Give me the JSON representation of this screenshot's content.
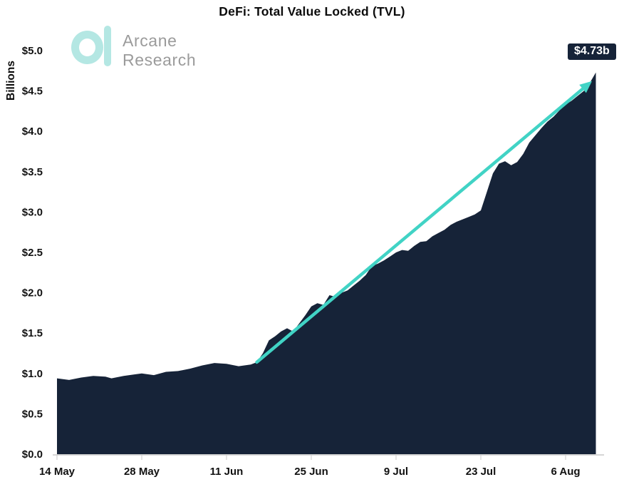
{
  "title": "DeFi: Total Value Locked (TVL)",
  "branding": {
    "name_line1": "Arcane",
    "name_line2": "Research",
    "logo_color": "#b4e7e3",
    "text_color": "#9b9b9b"
  },
  "callout": {
    "label": "$4.73b",
    "bg": "#162338",
    "text_color": "#ffffff"
  },
  "chart_data": {
    "type": "area",
    "title": "DeFi: Total Value Locked (TVL)",
    "xlabel": "",
    "ylabel": "Billions",
    "ylim": [
      0,
      5
    ],
    "y_tick_step": 0.5,
    "y_ticks": [
      "$0.0",
      "$0.5",
      "$1.0",
      "$1.5",
      "$2.0",
      "$2.5",
      "$3.0",
      "$3.5",
      "$4.0",
      "$4.5",
      "$5.0"
    ],
    "x_ticks": [
      {
        "day": 0,
        "label": "14 May"
      },
      {
        "day": 14,
        "label": "28 May"
      },
      {
        "day": 28,
        "label": "11 Jun"
      },
      {
        "day": 42,
        "label": "25 Jun"
      },
      {
        "day": 56,
        "label": "9 Jul"
      },
      {
        "day": 70,
        "label": "23 Jul"
      },
      {
        "day": 84,
        "label": "6 Aug"
      }
    ],
    "x_range_days": [
      0,
      89
    ],
    "grid": false,
    "legend": "none",
    "area_color": "#162338",
    "axis_color": "#c9c9c9",
    "tick_label_color": "#111111",
    "series": [
      {
        "name": "Total Value Locked",
        "unit": "USD billions",
        "points": [
          [
            0,
            "14 May",
            0.94
          ],
          [
            2,
            "16 May",
            0.92
          ],
          [
            4,
            "18 May",
            0.95
          ],
          [
            6,
            "20 May",
            0.97
          ],
          [
            8,
            "22 May",
            0.96
          ],
          [
            9,
            "23 May",
            0.94
          ],
          [
            11,
            "25 May",
            0.97
          ],
          [
            13,
            "27 May",
            0.99
          ],
          [
            14,
            "28 May",
            1.0
          ],
          [
            16,
            "30 May",
            0.98
          ],
          [
            18,
            "1 Jun",
            1.02
          ],
          [
            20,
            "3 Jun",
            1.03
          ],
          [
            22,
            "5 Jun",
            1.06
          ],
          [
            24,
            "7 Jun",
            1.1
          ],
          [
            26,
            "9 Jun",
            1.13
          ],
          [
            28,
            "11 Jun",
            1.12
          ],
          [
            30,
            "13 Jun",
            1.09
          ],
          [
            32,
            "15 Jun",
            1.11
          ],
          [
            33,
            "16 Jun",
            1.14
          ],
          [
            34,
            "17 Jun",
            1.25
          ],
          [
            35,
            "18 Jun",
            1.41
          ],
          [
            36,
            "19 Jun",
            1.46
          ],
          [
            37,
            "20 Jun",
            1.52
          ],
          [
            38,
            "21 Jun",
            1.56
          ],
          [
            39,
            "22 Jun",
            1.52
          ],
          [
            40,
            "23 Jun",
            1.62
          ],
          [
            41,
            "24 Jun",
            1.72
          ],
          [
            42,
            "25 Jun",
            1.83
          ],
          [
            43,
            "26 Jun",
            1.87
          ],
          [
            44,
            "27 Jun",
            1.85
          ],
          [
            45,
            "28 Jun",
            1.97
          ],
          [
            46,
            "29 Jun",
            1.95
          ],
          [
            47,
            "30 Jun",
            2.0
          ],
          [
            48,
            "1 Jul",
            2.03
          ],
          [
            49,
            "2 Jul",
            2.09
          ],
          [
            50,
            "3 Jul",
            2.15
          ],
          [
            51,
            "4 Jul",
            2.22
          ],
          [
            52,
            "5 Jul",
            2.33
          ],
          [
            53,
            "6 Jul",
            2.36
          ],
          [
            54,
            "7 Jul",
            2.4
          ],
          [
            55,
            "8 Jul",
            2.45
          ],
          [
            56,
            "9 Jul",
            2.5
          ],
          [
            57,
            "10 Jul",
            2.53
          ],
          [
            58,
            "11 Jul",
            2.52
          ],
          [
            59,
            "12 Jul",
            2.58
          ],
          [
            60,
            "13 Jul",
            2.63
          ],
          [
            61,
            "14 Jul",
            2.64
          ],
          [
            62,
            "15 Jul",
            2.7
          ],
          [
            63,
            "16 Jul",
            2.74
          ],
          [
            64,
            "17 Jul",
            2.78
          ],
          [
            65,
            "18 Jul",
            2.84
          ],
          [
            66,
            "19 Jul",
            2.88
          ],
          [
            67,
            "20 Jul",
            2.91
          ],
          [
            68,
            "21 Jul",
            2.94
          ],
          [
            69,
            "22 Jul",
            2.97
          ],
          [
            70,
            "23 Jul",
            3.02
          ],
          [
            71,
            "24 Jul",
            3.25
          ],
          [
            72,
            "25 Jul",
            3.48
          ],
          [
            73,
            "26 Jul",
            3.6
          ],
          [
            74,
            "27 Jul",
            3.63
          ],
          [
            75,
            "28 Jul",
            3.58
          ],
          [
            76,
            "29 Jul",
            3.62
          ],
          [
            77,
            "30 Jul",
            3.72
          ],
          [
            78,
            "31 Jul",
            3.86
          ],
          [
            79,
            "1 Aug",
            3.95
          ],
          [
            80,
            "2 Aug",
            4.04
          ],
          [
            81,
            "3 Aug",
            4.12
          ],
          [
            82,
            "4 Aug",
            4.18
          ],
          [
            83,
            "5 Aug",
            4.26
          ],
          [
            84,
            "6 Aug",
            4.33
          ],
          [
            85,
            "7 Aug",
            4.38
          ],
          [
            86,
            "8 Aug",
            4.44
          ],
          [
            87,
            "9 Aug",
            4.5
          ],
          [
            88,
            "10 Aug",
            4.6
          ],
          [
            89,
            "11 Aug",
            4.73
          ]
        ]
      }
    ],
    "annotation": {
      "label": "$4.73b",
      "value": 4.73
    },
    "trend_arrow": {
      "color": "#41d3c5",
      "from": {
        "day": 33,
        "date": "16 Jun",
        "value": 1.14
      },
      "to": {
        "day": 88,
        "date": "10 Aug",
        "value": 4.6
      }
    }
  }
}
